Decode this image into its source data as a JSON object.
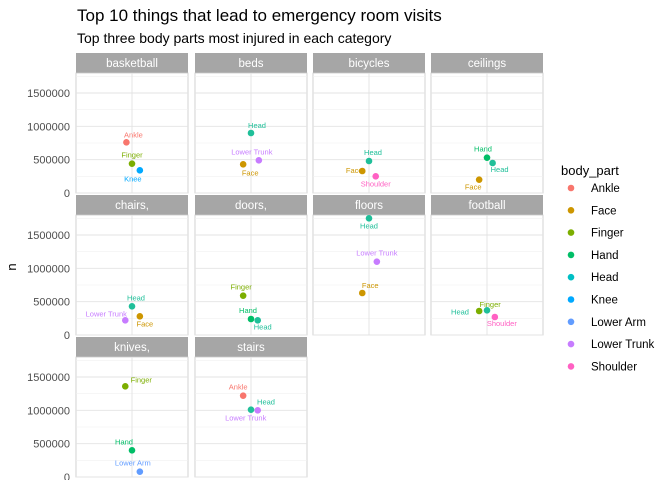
{
  "chart_data": {
    "type": "scatter",
    "title": "Top 10 things that lead to emergency room visits",
    "subtitle": "Top three body parts most injured in each category",
    "ylabel": "n",
    "xlabel": "",
    "ylim": [
      0,
      1800000
    ],
    "yticks": [
      0,
      500000,
      1000000,
      1500000
    ],
    "ytick_labels": [
      "0",
      "500000",
      "1000000",
      "1500000"
    ],
    "grid": true,
    "legend": {
      "title": "body_part",
      "placement": "right",
      "entries": [
        {
          "name": "Ankle",
          "color": "#F8766D"
        },
        {
          "name": "Face",
          "color": "#CD9600"
        },
        {
          "name": "Finger",
          "color": "#7CAE00"
        },
        {
          "name": "Hand",
          "color": "#00BE67"
        },
        {
          "name": "Head",
          "color": "#00BFC4"
        },
        {
          "name": "Knee",
          "color": "#00A9FF"
        },
        {
          "name": "Lower Arm",
          "color": "#619CFF"
        },
        {
          "name": "Lower Trunk",
          "color": "#C77CFF"
        },
        {
          "name": "Shoulder",
          "color": "#FF61C3"
        }
      ]
    },
    "head_color": "#1FBF99",
    "facets": [
      {
        "name": "basketball",
        "points": [
          {
            "body_part": "Ankle",
            "n": 760000,
            "jitter": -0.05
          },
          {
            "body_part": "Finger",
            "n": 440000,
            "jitter": 0.0
          },
          {
            "body_part": "Knee",
            "n": 340000,
            "jitter": 0.07
          }
        ]
      },
      {
        "name": "beds",
        "points": [
          {
            "body_part": "Head",
            "n": 900000,
            "jitter": 0.0
          },
          {
            "body_part": "Face",
            "n": 430000,
            "jitter": -0.07
          },
          {
            "body_part": "Lower Trunk",
            "n": 490000,
            "jitter": 0.07
          }
        ]
      },
      {
        "name": "bicycles",
        "points": [
          {
            "body_part": "Head",
            "n": 480000,
            "jitter": 0.0
          },
          {
            "body_part": "Face",
            "n": 330000,
            "jitter": -0.06
          },
          {
            "body_part": "Shoulder",
            "n": 250000,
            "jitter": 0.06
          }
        ]
      },
      {
        "name": "ceilings",
        "points": [
          {
            "body_part": "Hand",
            "n": 530000,
            "jitter": 0.0
          },
          {
            "body_part": "Head",
            "n": 450000,
            "jitter": 0.05
          },
          {
            "body_part": "Face",
            "n": 200000,
            "jitter": -0.07
          }
        ]
      },
      {
        "name": "chairs,",
        "points": [
          {
            "body_part": "Head",
            "n": 430000,
            "jitter": 0.0
          },
          {
            "body_part": "Lower Trunk",
            "n": 220000,
            "jitter": -0.06
          },
          {
            "body_part": "Face",
            "n": 280000,
            "jitter": 0.07
          }
        ]
      },
      {
        "name": "doors,",
        "points": [
          {
            "body_part": "Finger",
            "n": 590000,
            "jitter": -0.07
          },
          {
            "body_part": "Hand",
            "n": 240000,
            "jitter": 0.0
          },
          {
            "body_part": "Head",
            "n": 220000,
            "jitter": 0.06
          }
        ]
      },
      {
        "name": "floors",
        "points": [
          {
            "body_part": "Head",
            "n": 1750000,
            "jitter": 0.0
          },
          {
            "body_part": "Lower Trunk",
            "n": 1100000,
            "jitter": 0.07
          },
          {
            "body_part": "Face",
            "n": 630000,
            "jitter": -0.06
          }
        ]
      },
      {
        "name": "football",
        "points": [
          {
            "body_part": "Finger",
            "n": 360000,
            "jitter": -0.07
          },
          {
            "body_part": "Head",
            "n": 370000,
            "jitter": 0.0
          },
          {
            "body_part": "Shoulder",
            "n": 270000,
            "jitter": 0.07
          }
        ]
      },
      {
        "name": "knives,",
        "points": [
          {
            "body_part": "Finger",
            "n": 1360000,
            "jitter": -0.06
          },
          {
            "body_part": "Hand",
            "n": 400000,
            "jitter": 0.0
          },
          {
            "body_part": "Lower Arm",
            "n": 80000,
            "jitter": 0.07
          }
        ]
      },
      {
        "name": "stairs",
        "points": [
          {
            "body_part": "Ankle",
            "n": 1220000,
            "jitter": -0.07
          },
          {
            "body_part": "Head",
            "n": 1010000,
            "jitter": 0.0
          },
          {
            "body_part": "Lower Trunk",
            "n": 1000000,
            "jitter": 0.06
          }
        ]
      }
    ]
  }
}
